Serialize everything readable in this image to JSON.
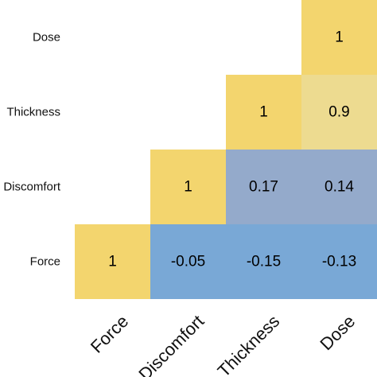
{
  "chart_data": {
    "type": "heatmap",
    "title": "",
    "xlabel": "",
    "ylabel": "",
    "x_categories": [
      "Force",
      "Discomfort",
      "Thickness",
      "Dose"
    ],
    "y_categories": [
      "Force",
      "Discomfort",
      "Thickness",
      "Dose"
    ],
    "cells": [
      {
        "row": "Dose",
        "col": "Dose",
        "value": 1,
        "label": "1"
      },
      {
        "row": "Thickness",
        "col": "Thickness",
        "value": 1,
        "label": "1"
      },
      {
        "row": "Thickness",
        "col": "Dose",
        "value": 0.9,
        "label": "0.9"
      },
      {
        "row": "Discomfort",
        "col": "Discomfort",
        "value": 1,
        "label": "1"
      },
      {
        "row": "Discomfort",
        "col": "Thickness",
        "value": 0.17,
        "label": "0.17"
      },
      {
        "row": "Discomfort",
        "col": "Dose",
        "value": 0.14,
        "label": "0.14"
      },
      {
        "row": "Force",
        "col": "Force",
        "value": 1,
        "label": "1"
      },
      {
        "row": "Force",
        "col": "Discomfort",
        "value": -0.05,
        "label": "-0.05"
      },
      {
        "row": "Force",
        "col": "Thickness",
        "value": -0.15,
        "label": "-0.15"
      },
      {
        "row": "Force",
        "col": "Dose",
        "value": -0.13,
        "label": "-0.13"
      }
    ],
    "colors": {
      "high": "#f3d56e",
      "mid": "#eddb90",
      "low": "#94aacb",
      "lowest": "#79a8d6"
    },
    "legend": "none",
    "grid": false
  }
}
